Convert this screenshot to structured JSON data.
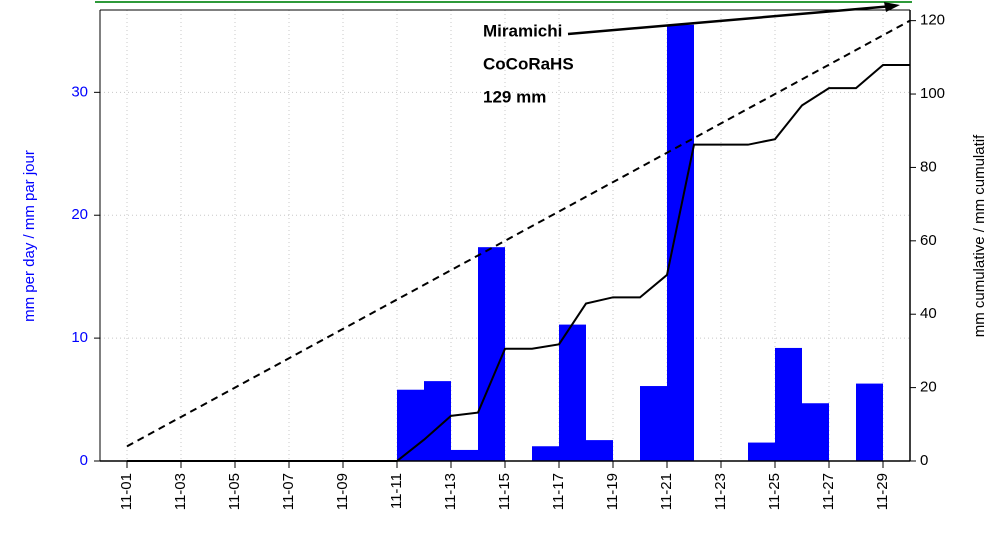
{
  "chart_data": {
    "type": "bar",
    "categories": [
      "11-01",
      null,
      "11-03",
      null,
      "11-05",
      null,
      "11-07",
      null,
      "11-09",
      null,
      "11-11",
      null,
      "11-13",
      null,
      "11-15",
      null,
      "11-17",
      null,
      "11-19",
      null,
      "11-21",
      null,
      "11-23",
      null,
      "11-25",
      null,
      "11-27",
      null,
      "11-29",
      null
    ],
    "series": [
      {
        "type": "bar",
        "color": "#0000ff",
        "values": [
          0,
          0,
          0,
          0,
          0,
          0,
          0,
          0,
          0,
          0,
          5.8,
          6.5,
          0.9,
          17.4,
          0,
          1.2,
          11.1,
          1.7,
          0,
          6.1,
          35.5,
          0,
          0,
          1.5,
          9.2,
          4.7,
          0,
          6.3,
          0,
          0
        ]
      },
      {
        "type": "line",
        "axis": "y2",
        "color": "#000000",
        "values": [
          0,
          0,
          0,
          0,
          0,
          0,
          0,
          0,
          0,
          0,
          0,
          5.8,
          12.3,
          13.2,
          30.6,
          30.6,
          31.8,
          42.9,
          44.6,
          44.6,
          50.7,
          86.2,
          86.2,
          86.2,
          87.7,
          96.9,
          101.6,
          101.6,
          107.9,
          107.9
        ]
      },
      {
        "type": "line",
        "axis": "y2",
        "color": "#000000",
        "dashed": true,
        "values": [
          4,
          8,
          12,
          16,
          20,
          24,
          28,
          32,
          36,
          40,
          44,
          48,
          52,
          56,
          60,
          64,
          68,
          72,
          76,
          80,
          84,
          88,
          92,
          96,
          100,
          104,
          108,
          112,
          116,
          120
        ]
      }
    ],
    "ylabel": "mm per day / mm par jour",
    "y2label": "mm cumulative / mm cumulatif",
    "ylim": [
      0,
      36.7
    ],
    "yticks": [
      0,
      10,
      20,
      30
    ],
    "y2lim": [
      0,
      122.9
    ],
    "y2ticks": [
      0,
      20,
      40,
      60,
      80,
      100,
      120
    ],
    "grid": true,
    "annotation": [
      "Miramichi",
      "CoCoRaHS",
      "129 mm"
    ]
  }
}
